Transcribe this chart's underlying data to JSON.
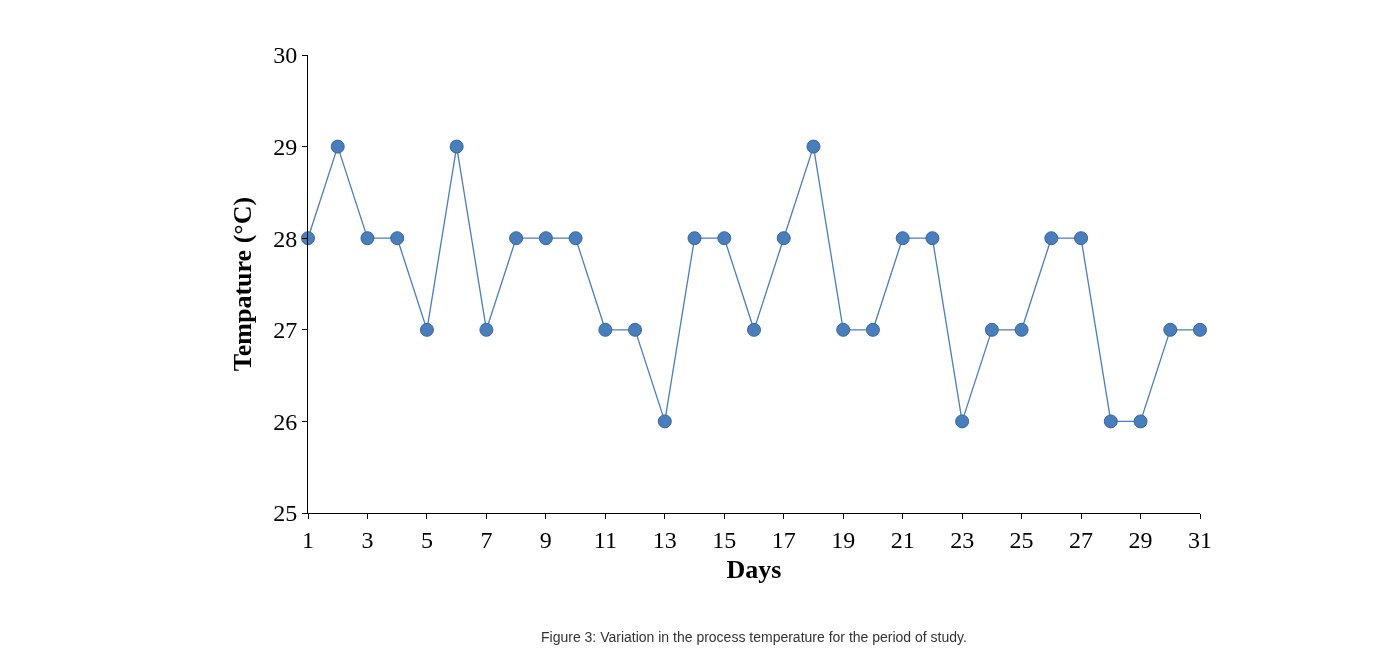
{
  "chart_data": {
    "type": "line",
    "xlabel": "Days",
    "ylabel": "Tempature (°C)",
    "x": [
      1,
      2,
      3,
      4,
      5,
      6,
      7,
      8,
      9,
      10,
      11,
      12,
      13,
      14,
      15,
      16,
      17,
      18,
      19,
      20,
      21,
      22,
      23,
      24,
      25,
      26,
      27,
      28,
      29,
      30,
      31
    ],
    "series": [
      {
        "color": "#4a7ebb",
        "values": [
          28,
          29,
          28,
          28,
          27,
          29,
          27,
          28,
          28,
          28,
          27,
          27,
          26,
          28,
          28,
          27,
          28,
          29,
          27,
          27,
          28,
          28,
          26,
          27,
          27,
          28,
          28,
          26,
          26,
          27,
          27
        ]
      }
    ],
    "xlim": [
      1,
      31
    ],
    "xticks": [
      1,
      3,
      5,
      7,
      9,
      11,
      13,
      15,
      17,
      19,
      21,
      23,
      25,
      27,
      29,
      31
    ],
    "ylim": [
      25,
      30
    ],
    "yticks": [
      25,
      26,
      27,
      28,
      29,
      30
    ],
    "marker": "circle",
    "line_style": "solid",
    "annotations": [
      "Figure 3: Variation in the process temperature for the period of study."
    ]
  }
}
